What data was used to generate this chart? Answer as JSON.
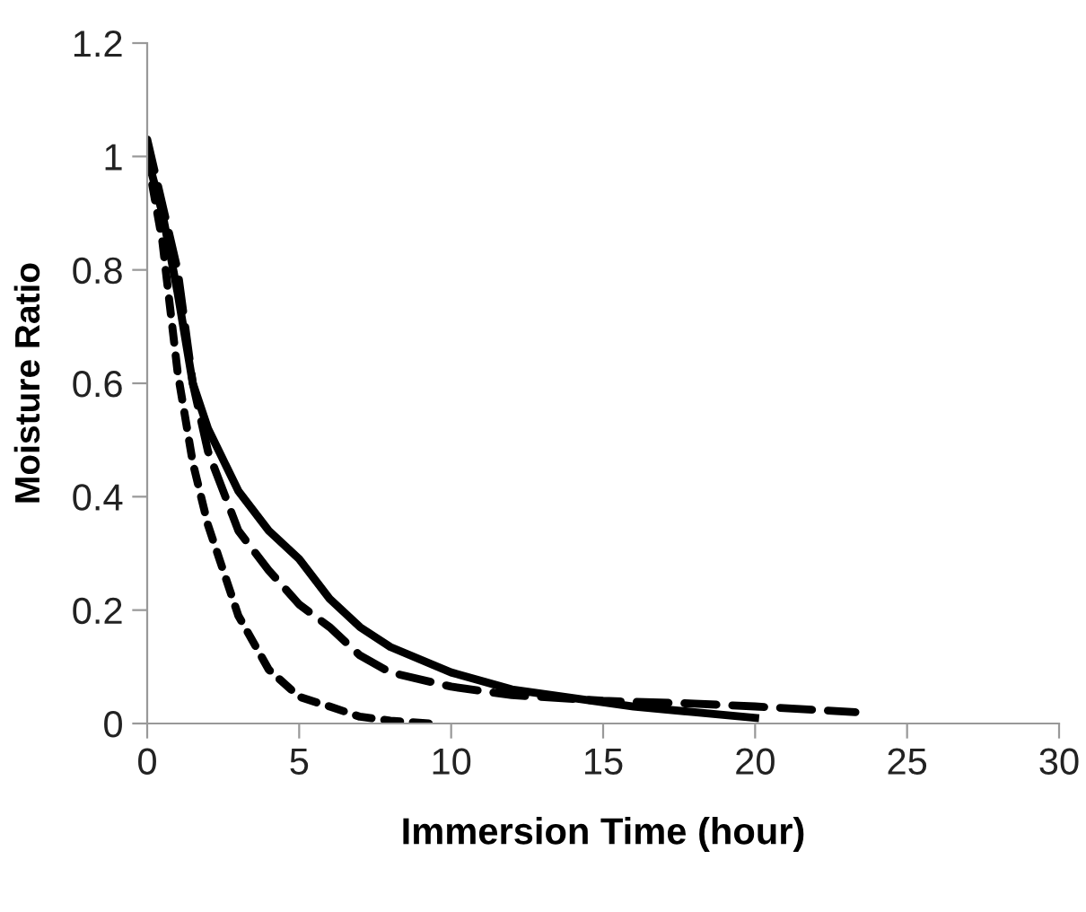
{
  "chart_data": {
    "type": "line",
    "xlabel": "Immersion Time (hour)",
    "ylabel": "Moisture Ratio",
    "xlim": [
      0,
      30
    ],
    "xticks": [
      0,
      5,
      10,
      15,
      20,
      25,
      30
    ],
    "ylim": [
      0,
      1.2
    ],
    "yticks": [
      0,
      0.2,
      0.4,
      0.6,
      0.8,
      1,
      1.2
    ],
    "grid": false,
    "legend": false,
    "marker": "none",
    "series": [
      {
        "color": "#000000",
        "line_style": "solid",
        "x": [
          0,
          0.5,
          1,
          1.5,
          2,
          3,
          4,
          5,
          6,
          7,
          8,
          10,
          12,
          14,
          16,
          18,
          20
        ],
        "values": [
          1.0,
          0.9,
          0.76,
          0.6,
          0.52,
          0.41,
          0.34,
          0.29,
          0.22,
          0.17,
          0.135,
          0.09,
          0.06,
          0.045,
          0.03,
          0.02,
          0.01
        ]
      },
      {
        "color": "#000000",
        "line_style": "dashed",
        "x": [
          0,
          1,
          1.5,
          2,
          3,
          4,
          5,
          6,
          7,
          8,
          10,
          12,
          15,
          18,
          20,
          23.3
        ],
        "values": [
          1.03,
          0.8,
          0.6,
          0.48,
          0.34,
          0.27,
          0.21,
          0.17,
          0.12,
          0.09,
          0.065,
          0.05,
          0.04,
          0.035,
          0.03,
          0.02
        ]
      },
      {
        "color": "#000000",
        "line_style": "dotted",
        "x": [
          0,
          0.5,
          1,
          1.5,
          2,
          3,
          4,
          5,
          6,
          7,
          8,
          9.3
        ],
        "values": [
          1.0,
          0.85,
          0.62,
          0.46,
          0.35,
          0.19,
          0.095,
          0.047,
          0.03,
          0.012,
          0.005,
          0.0
        ]
      }
    ]
  }
}
